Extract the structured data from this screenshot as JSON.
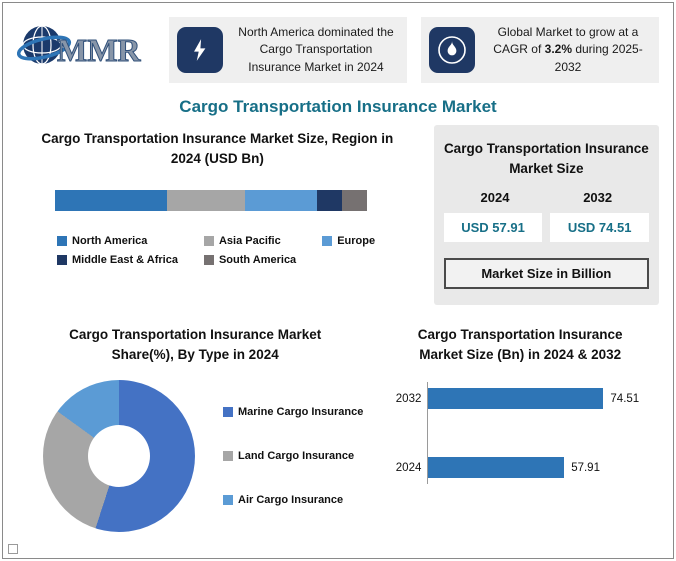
{
  "page": {
    "title": "Cargo Transportation Insurance Market"
  },
  "logo": {
    "text": "MMR"
  },
  "callouts": [
    {
      "icon": "lightning-icon",
      "text": "North America dominated the Cargo Transportation Insurance Market in 2024"
    },
    {
      "icon": "flame-icon",
      "prefix": "Global Market to grow at a CAGR of ",
      "bold": "3.2%",
      "suffix": " during 2025-2032"
    }
  ],
  "side_panel": {
    "title": "Cargo Transportation Insurance Market Size",
    "col1_year": "2024",
    "col2_year": "2032",
    "col1_value": "USD 57.91",
    "col2_value": "USD 74.51",
    "footer": "Market Size in Billion"
  },
  "chart_data": [
    {
      "type": "bar",
      "variant": "stacked-horizontal",
      "title": "Cargo Transportation Insurance Market Size, Region in 2024 (USD Bn)",
      "segments": [
        {
          "label": "North America",
          "value": 36,
          "color": "#2e75b6"
        },
        {
          "label": "Asia Pacific",
          "value": 25,
          "color": "#a6a6a6"
        },
        {
          "label": "Europe",
          "value": 23,
          "color": "#5b9bd5"
        },
        {
          "label": "Middle East & Africa",
          "value": 8,
          "color": "#1f3864"
        },
        {
          "label": "South America",
          "value": 8,
          "color": "#767171"
        }
      ]
    },
    {
      "type": "pie",
      "variant": "donut",
      "title": "Cargo Transportation Insurance Market Share(%), By Type in 2024",
      "slices": [
        {
          "label": "Marine Cargo Insurance",
          "value": 55,
          "color": "#4472c4"
        },
        {
          "label": "Land Cargo Insurance",
          "value": 30,
          "color": "#a6a6a6"
        },
        {
          "label": "Air Cargo Insurance",
          "value": 15,
          "color": "#5b9bd5"
        }
      ]
    },
    {
      "type": "bar",
      "variant": "horizontal",
      "title": "Cargo Transportation Insurance Market Size (Bn) in 2024 & 2032",
      "categories": [
        "2032",
        "2024"
      ],
      "values": [
        74.51,
        57.91
      ],
      "bar_color": "#2e75b6"
    }
  ]
}
